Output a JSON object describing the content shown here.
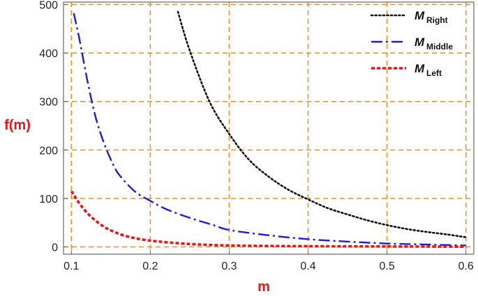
{
  "chart_data": {
    "type": "line",
    "title": "",
    "xlabel": "m",
    "ylabel": "f(m)",
    "xlim": [
      0.09,
      0.61
    ],
    "ylim": [
      -15,
      505
    ],
    "xticks": [
      0.1,
      0.2,
      0.3,
      0.4,
      0.5,
      0.6
    ],
    "xtick_labels": [
      "0.1",
      "0.2",
      "0.3",
      "0.4",
      "0.5",
      "0.6"
    ],
    "yticks": [
      0,
      100,
      200,
      300,
      400,
      500
    ],
    "ytick_labels": [
      "0",
      "100",
      "200",
      "300",
      "400",
      "500"
    ],
    "grid": true,
    "grid_color": "#e8901a",
    "legend_position": "top-right",
    "series": [
      {
        "name": "Right",
        "legend_symbol": "M",
        "legend_subscript": "Right",
        "color": "#111111",
        "dash": "dotted",
        "x": [
          0.235,
          0.25,
          0.275,
          0.3,
          0.325,
          0.35,
          0.375,
          0.4,
          0.425,
          0.45,
          0.475,
          0.5,
          0.525,
          0.55,
          0.575,
          0.6
        ],
        "y": [
          485,
          405,
          300,
          233,
          180,
          145,
          118,
          98,
          80,
          67,
          55,
          45,
          37,
          31,
          26,
          20
        ]
      },
      {
        "name": "Middle",
        "legend_symbol": "M",
        "legend_subscript": "Middle",
        "color": "#1c1cd6",
        "dash": "dashdot",
        "x": [
          0.103,
          0.11,
          0.12,
          0.13,
          0.14,
          0.15,
          0.16,
          0.18,
          0.2,
          0.22,
          0.25,
          0.28,
          0.3,
          0.35,
          0.4,
          0.45,
          0.5,
          0.55,
          0.6
        ],
        "y": [
          482,
          430,
          345,
          272,
          220,
          180,
          150,
          115,
          95,
          78,
          60,
          45,
          35,
          24,
          16,
          11,
          7,
          5,
          3
        ]
      },
      {
        "name": "Left",
        "legend_symbol": "M",
        "legend_subscript": "Left",
        "color": "#e8141c",
        "dash": "dashed",
        "x": [
          0.1,
          0.11,
          0.12,
          0.13,
          0.14,
          0.15,
          0.17,
          0.2,
          0.25,
          0.3,
          0.35,
          0.4,
          0.5,
          0.6
        ],
        "y": [
          115,
          90,
          70,
          55,
          43,
          34,
          22,
          13,
          6,
          3,
          2,
          1.5,
          1,
          0.5
        ]
      }
    ]
  }
}
